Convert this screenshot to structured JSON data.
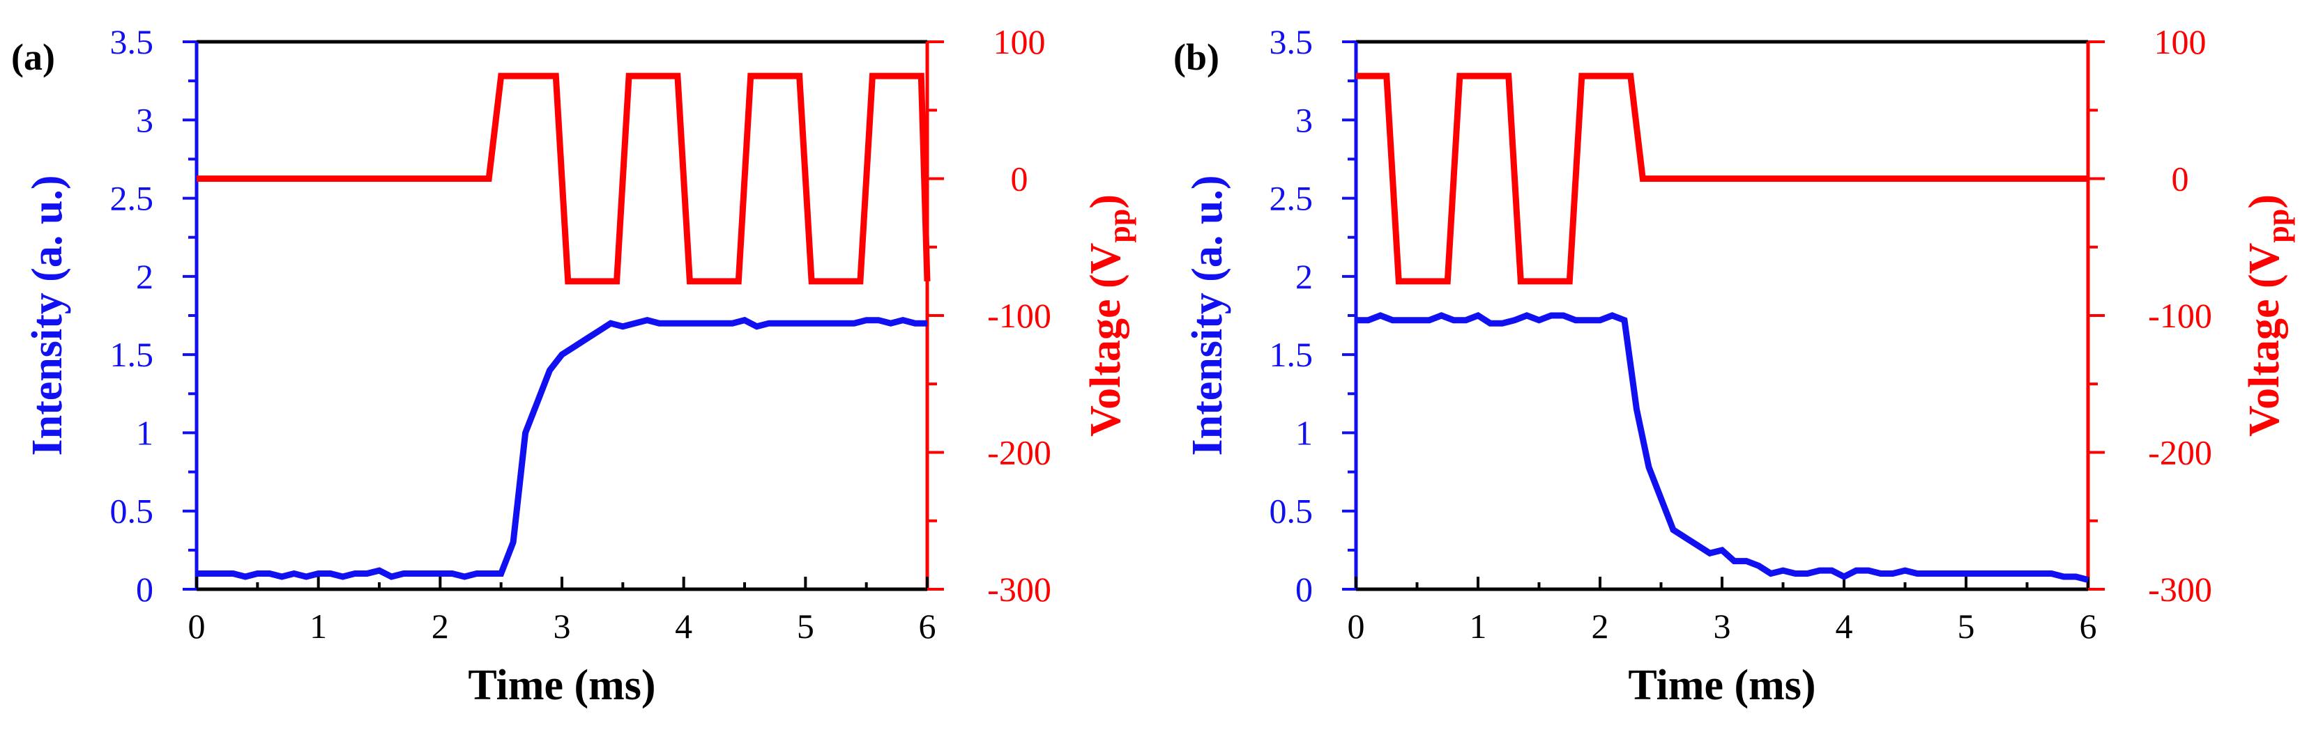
{
  "colors": {
    "intensity": "#1010f0",
    "voltage": "#ff0000",
    "frame": "#000000"
  },
  "chart_data": [
    {
      "type": "line",
      "panel_label": "(a)",
      "xlabel": "Time (ms)",
      "ylabel_left": "Intensity (a. u.)",
      "ylabel_right_main": "Voltage (V",
      "ylabel_right_sub": "pp",
      "ylabel_right_close": ")",
      "xlim": [
        0,
        6
      ],
      "ylim_left": [
        0,
        3.5
      ],
      "ylim_right": [
        -300,
        100
      ],
      "xticks": [
        "0",
        "1",
        "2",
        "3",
        "4",
        "5",
        "6"
      ],
      "yticks_left": [
        "0",
        "0.5",
        "1",
        "1.5",
        "2",
        "2.5",
        "3",
        "3.5"
      ],
      "yticks_right": [
        "-300",
        "-200",
        "-100",
        "0",
        "100"
      ],
      "series": [
        {
          "name": "Intensity",
          "axis": "left",
          "x": [
            0,
            0.1,
            0.2,
            0.3,
            0.4,
            0.5,
            0.6,
            0.7,
            0.8,
            0.9,
            1.0,
            1.1,
            1.2,
            1.3,
            1.4,
            1.5,
            1.6,
            1.7,
            1.8,
            1.9,
            2.0,
            2.1,
            2.2,
            2.3,
            2.4,
            2.5,
            2.6,
            2.7,
            2.8,
            2.9,
            3.0,
            3.1,
            3.2,
            3.3,
            3.4,
            3.5,
            3.6,
            3.7,
            3.8,
            3.9,
            4.0,
            4.1,
            4.2,
            4.3,
            4.4,
            4.5,
            4.6,
            4.7,
            4.8,
            4.9,
            5.0,
            5.1,
            5.2,
            5.3,
            5.4,
            5.5,
            5.6,
            5.7,
            5.8,
            5.9,
            6.0
          ],
          "values": [
            0.1,
            0.1,
            0.1,
            0.1,
            0.08,
            0.1,
            0.1,
            0.08,
            0.1,
            0.08,
            0.1,
            0.1,
            0.08,
            0.1,
            0.1,
            0.12,
            0.08,
            0.1,
            0.1,
            0.1,
            0.1,
            0.1,
            0.08,
            0.1,
            0.1,
            0.1,
            0.3,
            1.0,
            1.2,
            1.4,
            1.5,
            1.55,
            1.6,
            1.65,
            1.7,
            1.68,
            1.7,
            1.72,
            1.7,
            1.7,
            1.7,
            1.7,
            1.7,
            1.7,
            1.7,
            1.72,
            1.68,
            1.7,
            1.7,
            1.7,
            1.7,
            1.7,
            1.7,
            1.7,
            1.7,
            1.72,
            1.72,
            1.7,
            1.72,
            1.7,
            1.7
          ]
        },
        {
          "name": "Voltage",
          "axis": "right",
          "x": [
            0,
            2.4,
            2.5,
            2.95,
            3.05,
            3.45,
            3.55,
            3.95,
            4.05,
            4.45,
            4.55,
            4.95,
            5.05,
            5.45,
            5.55,
            5.95,
            6.0
          ],
          "values": [
            0,
            0,
            75,
            75,
            -75,
            -75,
            75,
            75,
            -75,
            -75,
            75,
            75,
            -75,
            -75,
            75,
            75,
            -75
          ]
        }
      ]
    },
    {
      "type": "line",
      "panel_label": "(b)",
      "xlabel": "Time (ms)",
      "ylabel_left": "Intensity (a. u.)",
      "ylabel_right_main": "Voltage (V",
      "ylabel_right_sub": "pp",
      "ylabel_right_close": ")",
      "xlim": [
        0,
        6
      ],
      "ylim_left": [
        0,
        3.5
      ],
      "ylim_right": [
        -300,
        100
      ],
      "xticks": [
        "0",
        "1",
        "2",
        "3",
        "4",
        "5",
        "6"
      ],
      "yticks_left": [
        "0",
        "0.5",
        "1",
        "1.5",
        "2",
        "2.5",
        "3",
        "3.5"
      ],
      "yticks_right": [
        "-300",
        "-200",
        "-100",
        "0",
        "100"
      ],
      "series": [
        {
          "name": "Intensity",
          "axis": "left",
          "x": [
            0,
            0.1,
            0.2,
            0.3,
            0.4,
            0.5,
            0.6,
            0.7,
            0.8,
            0.9,
            1.0,
            1.1,
            1.2,
            1.3,
            1.4,
            1.5,
            1.6,
            1.7,
            1.8,
            1.9,
            2.0,
            2.1,
            2.2,
            2.3,
            2.4,
            2.5,
            2.6,
            2.7,
            2.8,
            2.9,
            3.0,
            3.1,
            3.2,
            3.3,
            3.4,
            3.5,
            3.6,
            3.7,
            3.8,
            3.9,
            4.0,
            4.1,
            4.2,
            4.3,
            4.4,
            4.5,
            4.6,
            4.7,
            4.8,
            4.9,
            5.0,
            5.1,
            5.2,
            5.3,
            5.4,
            5.5,
            5.6,
            5.7,
            5.8,
            5.9,
            6.0
          ],
          "values": [
            1.72,
            1.72,
            1.75,
            1.72,
            1.72,
            1.72,
            1.72,
            1.75,
            1.72,
            1.72,
            1.75,
            1.7,
            1.7,
            1.72,
            1.75,
            1.72,
            1.75,
            1.75,
            1.72,
            1.72,
            1.72,
            1.75,
            1.72,
            1.15,
            0.78,
            0.58,
            0.38,
            0.33,
            0.28,
            0.23,
            0.25,
            0.18,
            0.18,
            0.15,
            0.1,
            0.12,
            0.1,
            0.1,
            0.12,
            0.12,
            0.08,
            0.12,
            0.12,
            0.1,
            0.1,
            0.12,
            0.1,
            0.1,
            0.1,
            0.1,
            0.1,
            0.1,
            0.1,
            0.1,
            0.1,
            0.1,
            0.1,
            0.1,
            0.08,
            0.08,
            0.06
          ]
        },
        {
          "name": "Voltage",
          "axis": "right",
          "x": [
            0,
            0.25,
            0.35,
            0.75,
            0.85,
            1.25,
            1.35,
            1.75,
            1.85,
            2.25,
            2.35,
            6.0
          ],
          "values": [
            75,
            75,
            -75,
            -75,
            75,
            75,
            -75,
            -75,
            75,
            75,
            0,
            0
          ]
        }
      ]
    }
  ]
}
